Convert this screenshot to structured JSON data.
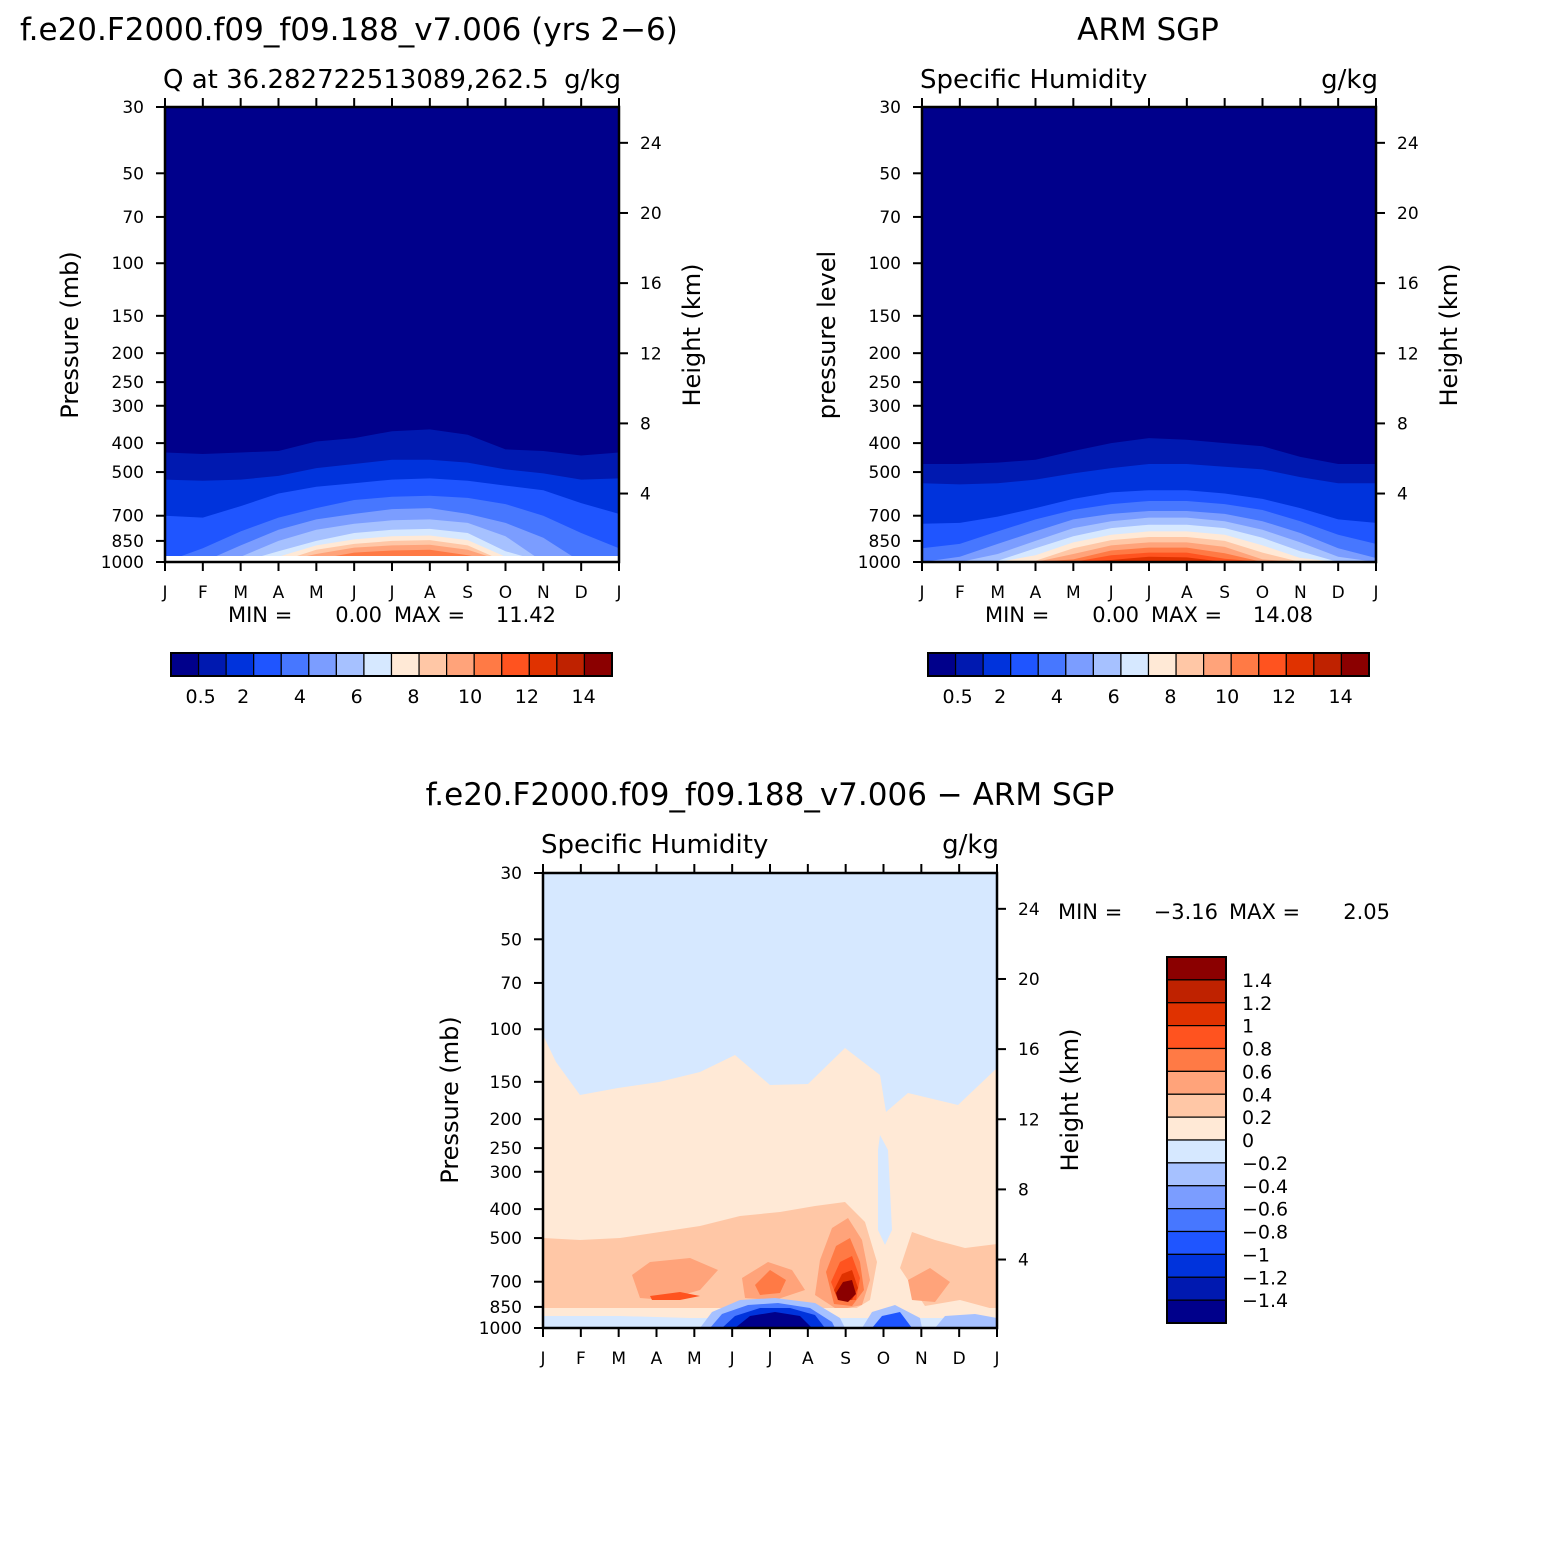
{
  "colors": {
    "model_levels": [
      "#00008b",
      "#0019b0",
      "#0033dc",
      "#1f55ff",
      "#4777ff",
      "#7b9dff",
      "#a6c1ff",
      "#d6e8ff",
      "#ffe9d6",
      "#ffc7a6",
      "#ffa37a",
      "#ff7a45",
      "#ff531f",
      "#e03200",
      "#bf2200",
      "#8b0000"
    ],
    "diff_levels": [
      "#00008b",
      "#0019b0",
      "#0033dc",
      "#1f55ff",
      "#4777ff",
      "#7b9dff",
      "#a6c1ff",
      "#d6e8ff",
      "#ffe9d6",
      "#ffc7a6",
      "#ffa37a",
      "#ff7a45",
      "#ff531f",
      "#e03200",
      "#bf2200",
      "#8b0000"
    ]
  },
  "chart_data": [
    {
      "type": "heatmap",
      "title": "f.e20.F2000.f09_f09.188_v7.006 (yrs 2−6)",
      "subtitle_left": "Q at 36.282722513089,262.5",
      "subtitle_right": "g/kg",
      "ylabel": "Pressure (mb)",
      "ylabel_right": "Height (km)",
      "x_ticks": [
        "J",
        "F",
        "M",
        "A",
        "M",
        "J",
        "J",
        "A",
        "S",
        "O",
        "N",
        "D",
        "J"
      ],
      "y_ticks": [
        "30",
        "50",
        "70",
        "100",
        "150",
        "200",
        "250",
        "300",
        "400",
        "500",
        "700",
        "850",
        "1000"
      ],
      "y_ticks_right": [
        "24",
        "20",
        "16",
        "12",
        "8",
        "4"
      ],
      "min_label": "MIN =",
      "min_value": "0.00",
      "max_label": "MAX =",
      "max_value": "11.42",
      "colorbar_labels": [
        "0.5",
        "2",
        "4",
        "6",
        "8",
        "10",
        "12",
        "14"
      ],
      "field": {
        "month_values": [
          0,
          1,
          2,
          3,
          4,
          5,
          6,
          7,
          8,
          9,
          10,
          11,
          12
        ],
        "boundaries_mb": [
          [
            430,
            435,
            430,
            425,
            395,
            385,
            365,
            360,
            375,
            420,
            425,
            440,
            430
          ],
          [
            530,
            535,
            530,
            515,
            485,
            470,
            455,
            455,
            465,
            490,
            505,
            530,
            525
          ],
          [
            700,
            710,
            650,
            590,
            560,
            545,
            530,
            525,
            535,
            555,
            575,
            635,
            690
          ],
          [
            1000,
            900,
            790,
            710,
            660,
            620,
            605,
            600,
            610,
            640,
            700,
            800,
            900
          ],
          [
            1000,
            1000,
            880,
            780,
            720,
            690,
            665,
            660,
            690,
            740,
            830,
            1000,
            1000
          ],
          [
            1000,
            1000,
            960,
            850,
            780,
            745,
            725,
            720,
            740,
            820,
            1000,
            1000,
            1000
          ],
          [
            1000,
            1000,
            1000,
            920,
            850,
            800,
            780,
            775,
            800,
            920,
            1000,
            1000,
            1000
          ],
          [
            1000,
            1000,
            1000,
            960,
            880,
            840,
            820,
            815,
            845,
            960,
            1000,
            1000,
            1000
          ],
          [
            1000,
            1000,
            1000,
            1000,
            910,
            870,
            850,
            845,
            880,
            1000,
            1000,
            1000,
            1000
          ],
          [
            1000,
            1000,
            1000,
            1000,
            940,
            895,
            880,
            875,
            910,
            1000,
            1000,
            1000,
            1000
          ],
          [
            1000,
            1000,
            1000,
            1000,
            980,
            930,
            915,
            910,
            950,
            1000,
            1000,
            1000,
            1000
          ]
        ]
      }
    },
    {
      "type": "heatmap",
      "title": "ARM SGP",
      "subtitle_left": "Specific Humidity",
      "subtitle_right": "g/kg",
      "ylabel": "pressure level",
      "ylabel_right": "Height (km)",
      "x_ticks": [
        "J",
        "F",
        "M",
        "A",
        "M",
        "J",
        "J",
        "A",
        "S",
        "O",
        "N",
        "D",
        "J"
      ],
      "y_ticks": [
        "30",
        "50",
        "70",
        "100",
        "150",
        "200",
        "250",
        "300",
        "400",
        "500",
        "700",
        "850",
        "1000"
      ],
      "y_ticks_right": [
        "24",
        "20",
        "16",
        "12",
        "8",
        "4"
      ],
      "min_label": "MIN =",
      "min_value": "0.00",
      "max_label": "MAX =",
      "max_value": "14.08",
      "colorbar_labels": [
        "0.5",
        "2",
        "4",
        "6",
        "8",
        "10",
        "12",
        "14"
      ],
      "field": {
        "month_values": [
          0,
          1,
          2,
          3,
          4,
          5,
          6,
          7,
          8,
          9,
          10,
          11,
          12
        ],
        "boundaries_mb": [
          [
            470,
            470,
            465,
            455,
            425,
            400,
            385,
            390,
            400,
            410,
            445,
            470,
            470
          ],
          [
            545,
            550,
            545,
            530,
            505,
            485,
            470,
            470,
            480,
            490,
            520,
            545,
            545
          ],
          [
            745,
            740,
            705,
            660,
            615,
            585,
            575,
            575,
            590,
            615,
            660,
            720,
            740
          ],
          [
            900,
            870,
            790,
            720,
            670,
            640,
            625,
            625,
            640,
            670,
            730,
            810,
            870
          ],
          [
            1000,
            960,
            870,
            790,
            720,
            690,
            675,
            675,
            690,
            730,
            800,
            900,
            970
          ],
          [
            1000,
            1000,
            940,
            850,
            770,
            730,
            710,
            710,
            730,
            780,
            860,
            960,
            1000
          ],
          [
            1000,
            1000,
            990,
            900,
            820,
            770,
            750,
            750,
            770,
            830,
            920,
            1000,
            1000
          ],
          [
            1000,
            1000,
            1000,
            950,
            860,
            810,
            790,
            790,
            810,
            880,
            970,
            1000,
            1000
          ],
          [
            1000,
            1000,
            1000,
            990,
            900,
            845,
            825,
            825,
            850,
            930,
            1000,
            1000,
            1000
          ],
          [
            1000,
            1000,
            1000,
            1000,
            940,
            880,
            860,
            860,
            890,
            980,
            1000,
            1000,
            1000
          ],
          [
            1000,
            1000,
            1000,
            1000,
            980,
            915,
            895,
            895,
            935,
            1000,
            1000,
            1000,
            1000
          ],
          [
            1000,
            1000,
            1000,
            1000,
            1000,
            950,
            930,
            930,
            975,
            1000,
            1000,
            1000,
            1000
          ],
          [
            1000,
            1000,
            1000,
            1000,
            1000,
            985,
            960,
            965,
            1000,
            1000,
            1000,
            1000,
            1000
          ]
        ]
      }
    },
    {
      "type": "heatmap",
      "title": "f.e20.F2000.f09_f09.188_v7.006 − ARM SGP",
      "subtitle_left": "Specific Humidity",
      "subtitle_right": "g/kg",
      "ylabel": "Pressure (mb)",
      "ylabel_right": "Height (km)",
      "x_ticks": [
        "J",
        "F",
        "M",
        "A",
        "M",
        "J",
        "J",
        "A",
        "S",
        "O",
        "N",
        "D",
        "J"
      ],
      "y_ticks": [
        "30",
        "50",
        "70",
        "100",
        "150",
        "200",
        "250",
        "300",
        "400",
        "500",
        "700",
        "850",
        "1000"
      ],
      "y_ticks_right": [
        "24",
        "20",
        "16",
        "12",
        "8",
        "4"
      ],
      "min_label": "MIN =",
      "min_value": "−3.16",
      "max_label": "MAX =",
      "max_value": "2.05",
      "colorbar_labels": [
        "1.4",
        "1.2",
        "1",
        "0.8",
        "0.6",
        "0.4",
        "0.2",
        "0",
        "−0.2",
        "−0.4",
        "−0.6",
        "−0.8",
        "−1",
        "−1.2",
        "−1.4"
      ]
    }
  ]
}
